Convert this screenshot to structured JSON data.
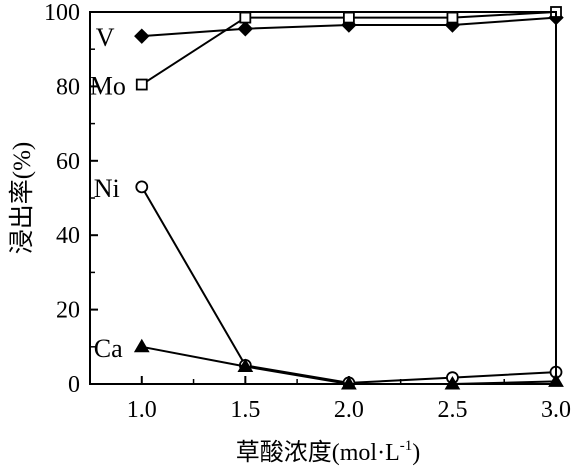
{
  "chart_data": {
    "type": "line",
    "title": "",
    "xlabel": "草酸浓度(mol·L",
    "xlabel_superscript": "-1",
    "xlabel_close": ")",
    "ylabel": "浸出率(%)",
    "x": [
      1.0,
      1.5,
      2.0,
      2.5,
      3.0
    ],
    "xlim": [
      0.75,
      3.0
    ],
    "ylim": [
      0,
      100
    ],
    "xticks": [
      "1.0",
      "1.5",
      "2.0",
      "2.5",
      "3.0"
    ],
    "yticks": [
      "0",
      "20",
      "40",
      "60",
      "80",
      "100"
    ],
    "grid": false,
    "series": [
      {
        "name": "V",
        "marker": "diamond-filled",
        "values": [
          93.5,
          95.5,
          96.5,
          96.5,
          98.5
        ]
      },
      {
        "name": "Mo",
        "marker": "square-open",
        "values": [
          80.5,
          98.5,
          98.5,
          98.5,
          100
        ]
      },
      {
        "name": "Ni",
        "marker": "circle-open",
        "values": [
          53,
          5,
          0.3,
          1.7,
          3.2
        ]
      },
      {
        "name": "Ca",
        "marker": "triangle-filled",
        "values": [
          10,
          4.7,
          0,
          0,
          0.7
        ]
      }
    ]
  }
}
